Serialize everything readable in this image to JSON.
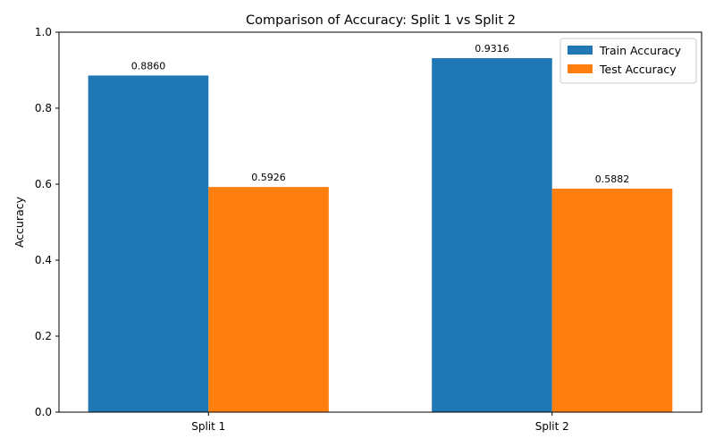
{
  "chart_data": {
    "type": "bar",
    "title": "Comparison of Accuracy: Split 1 vs Split 2",
    "xlabel": "",
    "ylabel": "Accuracy",
    "categories": [
      "Split 1",
      "Split 2"
    ],
    "series": [
      {
        "name": "Train Accuracy",
        "values": [
          0.886,
          0.9316
        ],
        "labels": [
          "0.8860",
          "0.9316"
        ],
        "color": "#1f77b4"
      },
      {
        "name": "Test Accuracy",
        "values": [
          0.5926,
          0.5882
        ],
        "labels": [
          "0.5926",
          "0.5882"
        ],
        "color": "#ff7f0e"
      }
    ],
    "ylim": [
      0,
      1.0
    ],
    "yticks": [
      0.0,
      0.2,
      0.4,
      0.6,
      0.8,
      1.0
    ],
    "ytick_labels": [
      "0.0",
      "0.2",
      "0.4",
      "0.6",
      "0.8",
      "1.0"
    ],
    "grid": false,
    "legend_position": "top-right"
  }
}
